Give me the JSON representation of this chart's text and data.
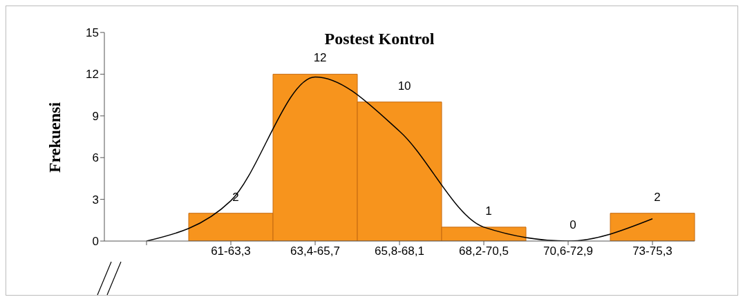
{
  "chart_data": {
    "type": "bar",
    "title": "Postest Kontrol",
    "ylabel": "Frekuensi",
    "categories": [
      null,
      "61-63,3",
      "63,4-65,7",
      "65,8-68,1",
      "68,2-70,5",
      "70,6-72,9",
      "73-75,3"
    ],
    "series": [
      {
        "color": "#f7941d",
        "values": [
          null,
          2,
          12,
          10,
          1,
          0,
          2
        ],
        "value_labels": [
          null,
          "2",
          "12",
          "10",
          "1",
          "0",
          "2"
        ]
      },
      {
        "type": "line",
        "color": "#000000",
        "values": [
          0,
          2.9,
          11.8,
          7.9,
          1,
          0,
          1.6
        ]
      }
    ],
    "ylim": [
      0,
      15
    ],
    "yticks": [
      0,
      3,
      6,
      9,
      12,
      15
    ],
    "grid": false,
    "legend": false
  }
}
